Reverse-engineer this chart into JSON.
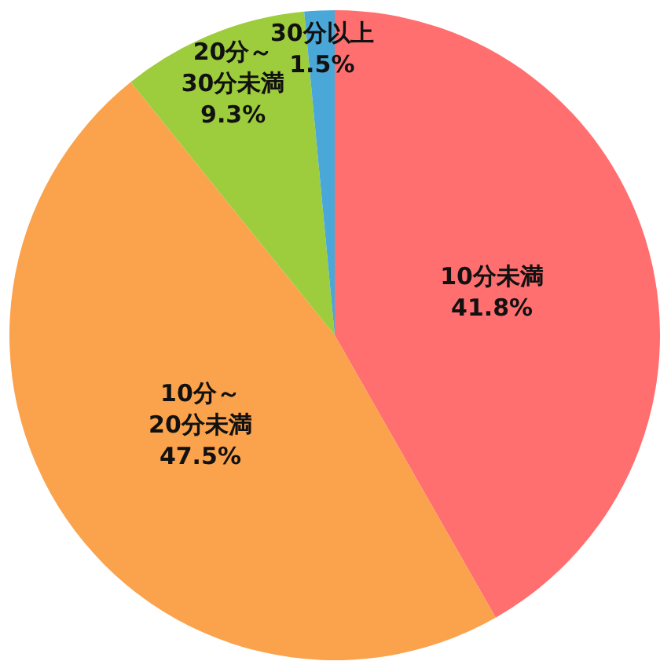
{
  "chart_data": {
    "type": "pie",
    "categories": [
      "10分未満",
      "10分～\n20分未満",
      "20分～\n30分未満",
      "30分以上"
    ],
    "values": [
      41.8,
      47.5,
      9.3,
      1.5
    ],
    "value_labels": [
      "41.8%",
      "47.5%",
      "9.3%",
      "1.5%"
    ],
    "colors": [
      "#ff6f6f",
      "#fba24c",
      "#9dcc3c",
      "#4aa8d8"
    ],
    "legend": false
  }
}
